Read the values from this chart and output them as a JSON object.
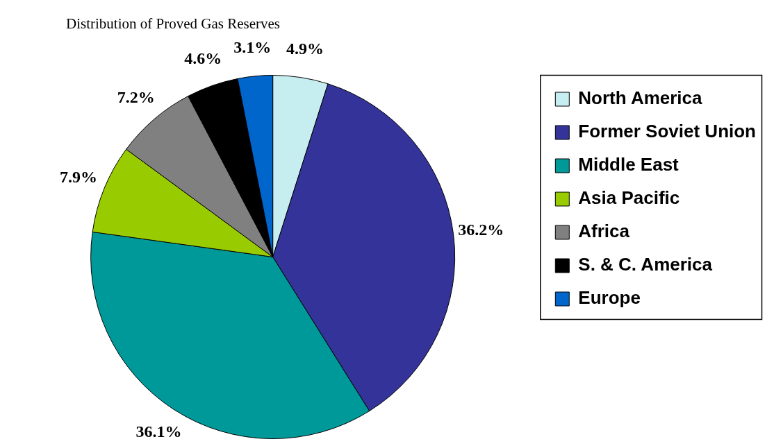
{
  "chart_data": {
    "type": "pie",
    "title": "Distribution of Proved Gas Reserves",
    "categories": [
      "North America",
      "Former Soviet Union",
      "Middle East",
      "Asia Pacific",
      "Africa",
      "S. & C. America",
      "Europe"
    ],
    "values": [
      4.9,
      36.2,
      36.1,
      7.9,
      7.2,
      4.6,
      3.1
    ],
    "colors": [
      "#c6eef0",
      "#333399",
      "#009999",
      "#99cc00",
      "#808080",
      "#000000",
      "#0066cc"
    ],
    "value_labels": [
      "4.9%",
      "36.2%",
      "36.1%",
      "7.9%",
      "7.2%",
      "4.6%",
      "3.1%"
    ],
    "legend": "right"
  }
}
